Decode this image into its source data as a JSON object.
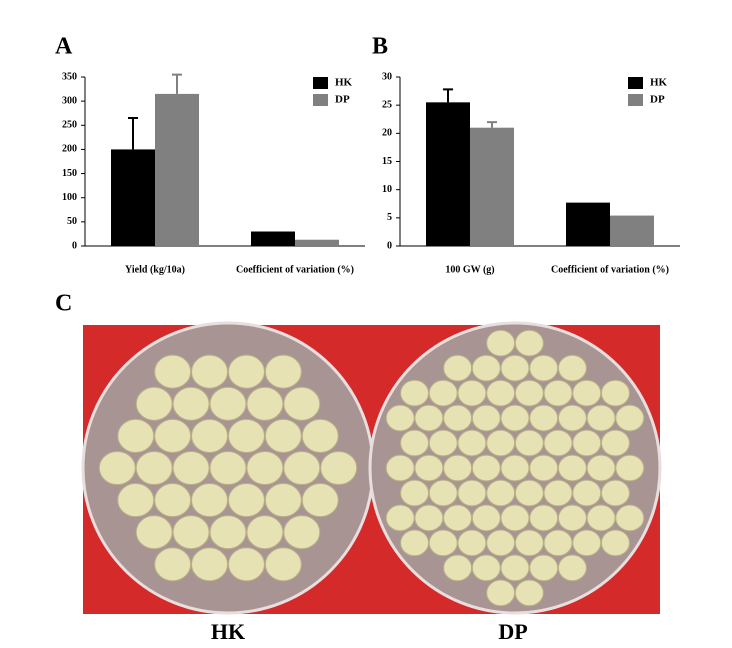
{
  "chart_data": [
    {
      "type": "bar",
      "label": "A",
      "categories": [
        "Yield (kg/10a)",
        "Coefficient of variation (%)"
      ],
      "series": [
        {
          "name": "HK",
          "color": "#000000",
          "values": [
            200,
            30
          ],
          "errors": [
            65,
            null
          ]
        },
        {
          "name": "DP",
          "color": "#808080",
          "values": [
            315,
            13
          ],
          "errors": [
            40,
            null
          ]
        }
      ],
      "ylim": [
        0,
        350
      ],
      "yticks": [
        0,
        50,
        100,
        150,
        200,
        250,
        300,
        350
      ],
      "legend": "upper right"
    },
    {
      "type": "bar",
      "label": "B",
      "categories": [
        "100 GW (g)",
        "Coefficient of variation (%)"
      ],
      "series": [
        {
          "name": "HK",
          "color": "#000000",
          "values": [
            25.5,
            7.7
          ],
          "errors": [
            2.3,
            null
          ]
        },
        {
          "name": "DP",
          "color": "#808080",
          "values": [
            21,
            5.4
          ],
          "errors": [
            1,
            null
          ]
        }
      ],
      "ylim": [
        0,
        30
      ],
      "yticks": [
        0,
        5,
        10,
        15,
        20,
        25,
        30
      ],
      "legend": "upper right"
    }
  ],
  "panel_c": {
    "label": "C",
    "captions": [
      "HK",
      "DP"
    ]
  }
}
